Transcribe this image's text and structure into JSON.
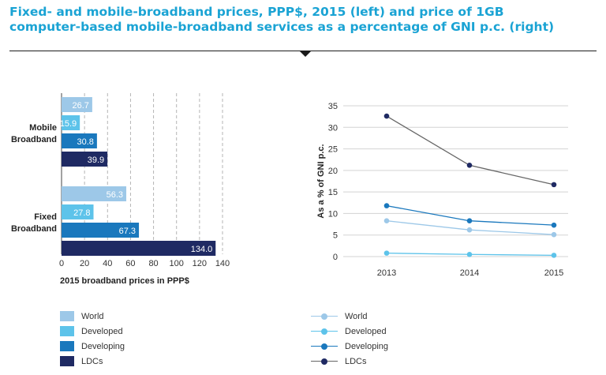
{
  "header": {
    "title_line1": "Fixed- and mobile-broadband prices, PPP$, 2015 (left) and price of 1GB",
    "title_line2": "computer-based mobile-broadband services as a percentage of GNI p.c. (right)"
  },
  "colors": {
    "title": "#1aa3d4",
    "World": "#9dc8e8",
    "Developed": "#5dc3ea",
    "Developing": "#1a78bd",
    "LDCs": "#1f2a63",
    "ldc_line": "#666666"
  },
  "chart_data": [
    {
      "type": "bar",
      "orientation": "horizontal",
      "categories": [
        "Mobile Broadband",
        "Fixed Broadband"
      ],
      "category_labels": [
        [
          "Mobile",
          "Broadband"
        ],
        [
          "Fixed",
          "Broadband"
        ]
      ],
      "series": [
        {
          "name": "World",
          "values": [
            26.7,
            56.3
          ],
          "labels": [
            "26.7",
            "56.3"
          ]
        },
        {
          "name": "Developed",
          "values": [
            15.9,
            27.8
          ],
          "labels": [
            "15.9",
            "27.8"
          ]
        },
        {
          "name": "Developing",
          "values": [
            30.8,
            67.3
          ],
          "labels": [
            "30.8",
            "67.3"
          ]
        },
        {
          "name": "LDCs",
          "values": [
            39.9,
            134.0
          ],
          "labels": [
            "39.9",
            "134.0"
          ]
        }
      ],
      "xlabel": "2015 broadband prices in PPP$",
      "xlim": [
        0,
        140
      ],
      "xticks": [
        "0",
        "20",
        "40",
        "60",
        "80",
        "100",
        "120",
        "140"
      ],
      "grid": "vertical dashed",
      "legend_position": "bottom-left"
    },
    {
      "type": "line",
      "x": [
        "2013",
        "2014",
        "2015"
      ],
      "series": [
        {
          "name": "World",
          "values": [
            8.3,
            6.2,
            5.1
          ]
        },
        {
          "name": "Developed",
          "values": [
            0.8,
            0.5,
            0.3
          ]
        },
        {
          "name": "Developing",
          "values": [
            11.8,
            8.3,
            7.3
          ]
        },
        {
          "name": "LDCs",
          "values": [
            32.6,
            21.2,
            16.7
          ]
        }
      ],
      "ylabel": "As a % of GNI p.c.",
      "ylim": [
        0,
        35
      ],
      "yticks": [
        "0",
        "5",
        "10",
        "15",
        "20",
        "25",
        "30",
        "35"
      ],
      "grid": "horizontal",
      "legend_position": "bottom-left"
    }
  ],
  "legend": {
    "items": [
      {
        "label": "World",
        "color": "#9dc8e8"
      },
      {
        "label": "Developed",
        "color": "#5dc3ea"
      },
      {
        "label": "Developing",
        "color": "#1a78bd"
      },
      {
        "label": "LDCs",
        "color": "#1f2a63"
      }
    ]
  }
}
